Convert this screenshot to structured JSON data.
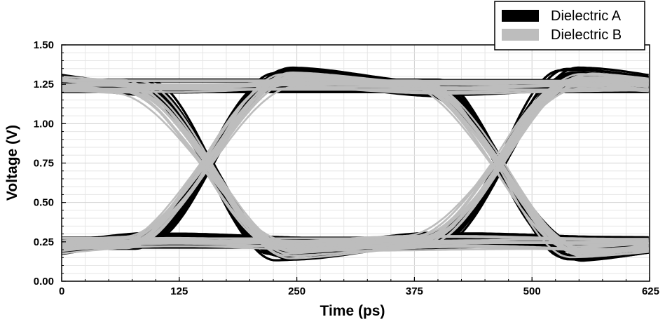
{
  "chart_data": {
    "type": "line",
    "subtype": "eye-diagram",
    "title": "",
    "xlabel": "Time (ps)",
    "ylabel": "Voltage (V)",
    "xlim": [
      0,
      625
    ],
    "ylim": [
      0,
      1.5
    ],
    "xticks": [
      0,
      125,
      250,
      375,
      500,
      625
    ],
    "xtick_labels": [
      "0",
      "125",
      "250",
      "375",
      "500",
      "625"
    ],
    "yticks": [
      0,
      0.25,
      0.5,
      0.75,
      1.0,
      1.25,
      1.5
    ],
    "ytick_labels": [
      "0.00",
      "0.25",
      "0.50",
      "0.75",
      "1.00",
      "1.25",
      "1.50"
    ],
    "grid": true,
    "legend_position": "top-right",
    "series": [
      {
        "name": "Dielectric A",
        "color": "#000000",
        "crossing_time_ps": [
          157,
          467
        ],
        "crossing_voltage": 0.82,
        "high_level_range": [
          1.08,
          1.4
        ],
        "low_level_range": [
          0.06,
          0.43
        ]
      },
      {
        "name": "Dielectric B",
        "color": "#bdbdbd",
        "crossing_time_ps": [
          155,
          465
        ],
        "crossing_voltage": 0.82,
        "high_level_range": [
          1.1,
          1.38
        ],
        "low_level_range": [
          0.08,
          0.4
        ]
      }
    ]
  }
}
